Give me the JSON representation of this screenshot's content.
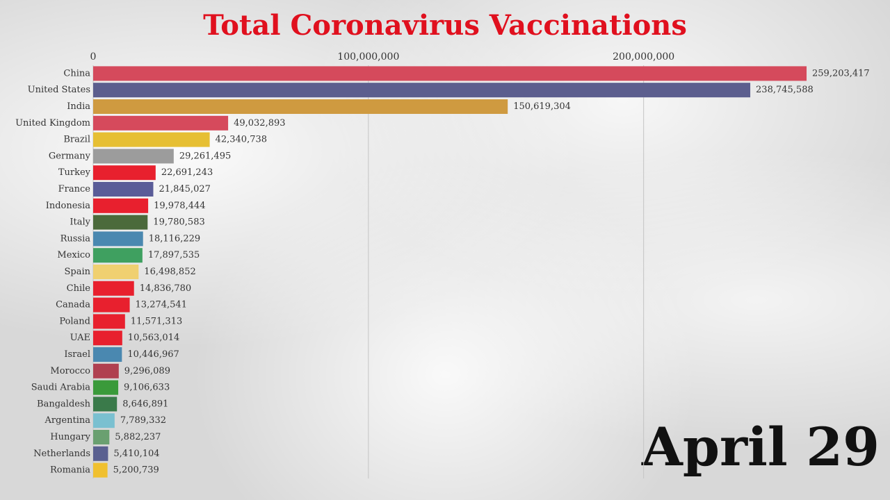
{
  "chart_data": {
    "type": "bar",
    "orientation": "horizontal",
    "title": "Total Coronavirus Vaccinations",
    "annotation": "April 29",
    "categories": [
      "China",
      "United States",
      "India",
      "United Kingdom",
      "Brazil",
      "Germany",
      "Turkey",
      "France",
      "Indonesia",
      "Italy",
      "Russia",
      "Mexico",
      "Spain",
      "Chile",
      "Canada",
      "Poland",
      "UAE",
      "Israel",
      "Morocco",
      "Saudi Arabia",
      "Bangaldesh",
      "Argentina",
      "Hungary",
      "Netherlands",
      "Romania"
    ],
    "values": [
      259203417,
      238745588,
      150619304,
      49032893,
      42340738,
      29261495,
      22691243,
      21845027,
      19978444,
      19780583,
      18116229,
      17897535,
      16498852,
      14836780,
      13274541,
      11571313,
      10563014,
      10446967,
      9296089,
      9106633,
      8646891,
      7789332,
      5882237,
      5410104,
      5200739
    ],
    "value_labels": [
      "259,203,417",
      "238,745,588",
      "150,619,304",
      "49,032,893",
      "42,340,738",
      "29,261,495",
      "22,691,243",
      "21,845,027",
      "19,978,444",
      "19,780,583",
      "18,116,229",
      "17,897,535",
      "16,498,852",
      "14,836,780",
      "13,274,541",
      "11,571,313",
      "10,563,014",
      "10,446,967",
      "9,296,089",
      "9,106,633",
      "8,646,891",
      "7,789,332",
      "5,882,237",
      "5,410,104",
      "5,200,739"
    ],
    "colors": [
      "#d54a5c",
      "#5c5e8e",
      "#cf9a40",
      "#d64a5c",
      "#e6bf33",
      "#9c9c9c",
      "#e8202e",
      "#5a5c98",
      "#e8202e",
      "#4b6a3b",
      "#4a88b0",
      "#3fa060",
      "#f0d070",
      "#e8202e",
      "#e8202e",
      "#e8202e",
      "#e8202e",
      "#4a88b0",
      "#b04050",
      "#3a9a3a",
      "#3a7a4a",
      "#7ac0d0",
      "#6aa070",
      "#5a6090",
      "#f0c030"
    ],
    "xlim": [
      0,
      288000000
    ],
    "xticks": [
      0,
      {
        "value": 100000000,
        "label": "100,000,000"
      },
      {
        "value": 200000000,
        "label": "200,000,000"
      }
    ],
    "grid": true
  }
}
